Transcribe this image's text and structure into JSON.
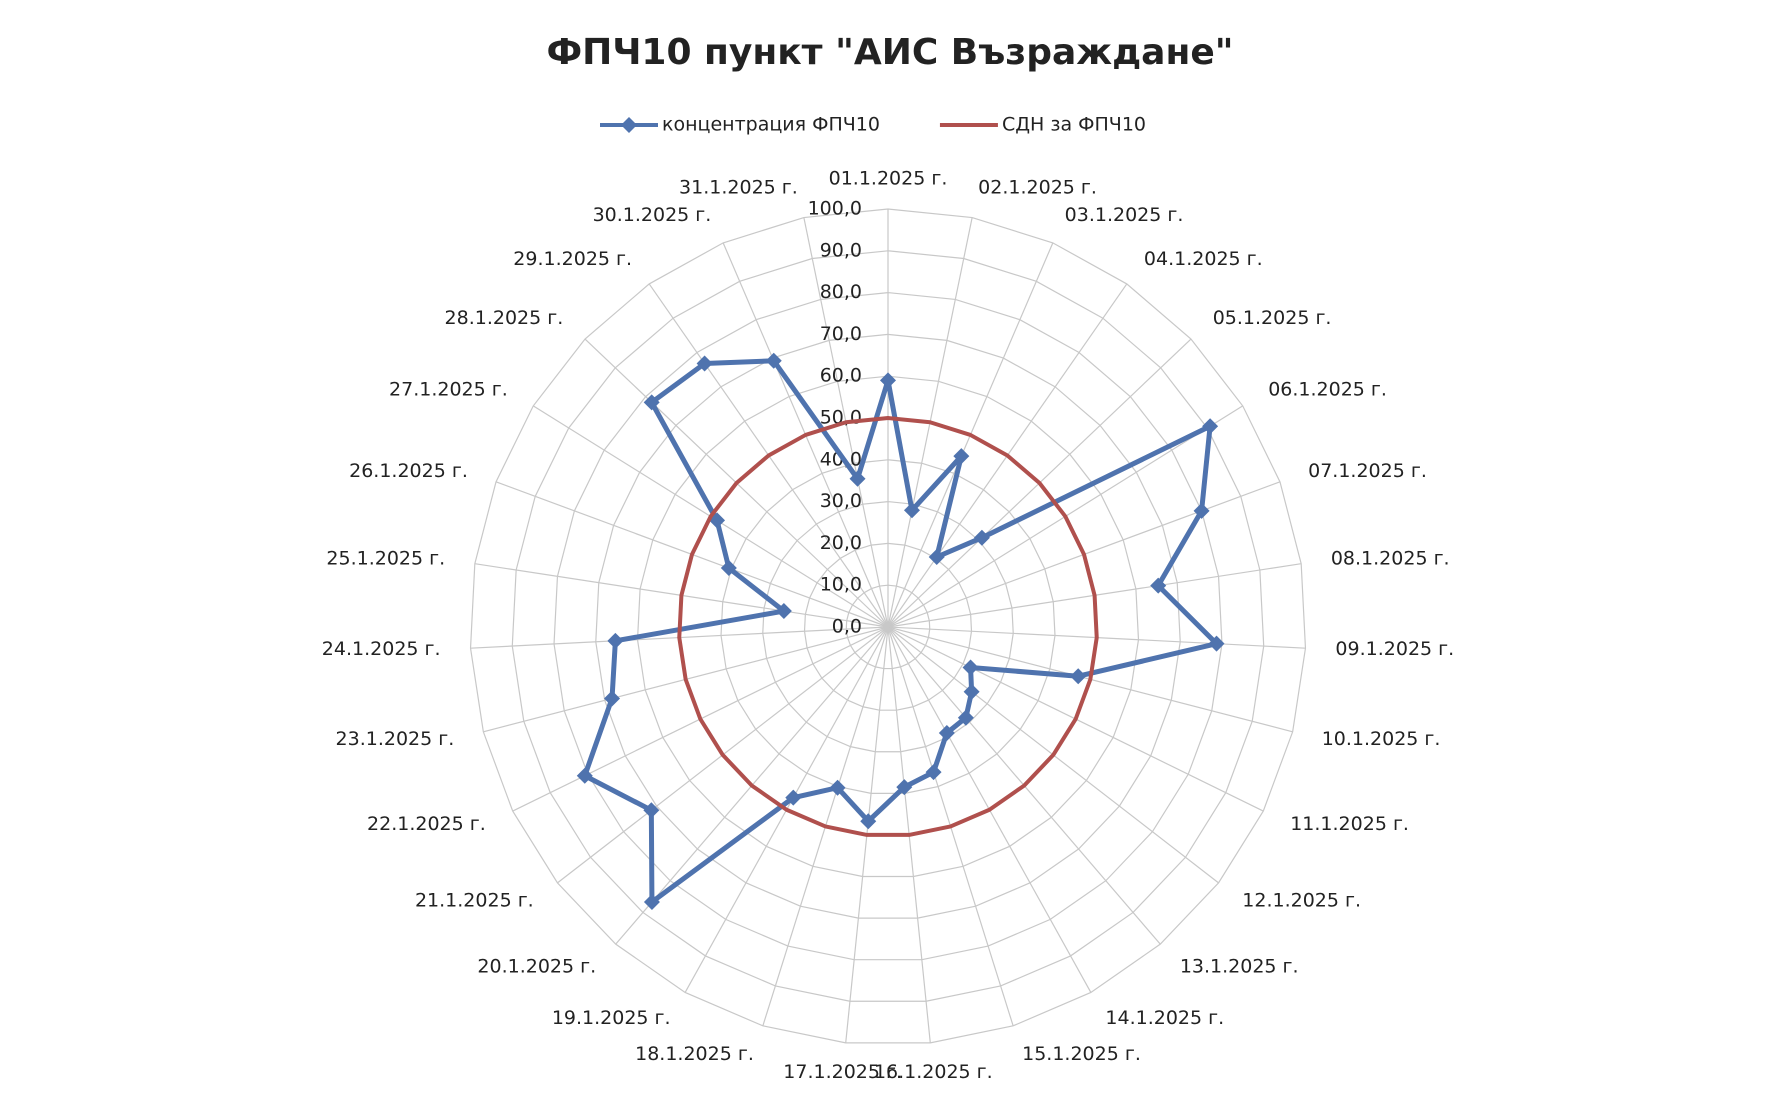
{
  "chart_data": {
    "type": "radar",
    "title": "ФПЧ10 пункт \"АИС Възраждане\"",
    "categories": [
      "01.1.2025 г.",
      "02.1.2025 г.",
      "03.1.2025 г.",
      "04.1.2025 г.",
      "05.1.2025 г.",
      "06.1.2025 г.",
      "07.1.2025 г.",
      "08.1.2025 г.",
      "09.1.2025 г.",
      "10.1.2025 г.",
      "11.1.2025 г.",
      "12.1.2025 г.",
      "13.1.2025 г.",
      "14.1.2025 г.",
      "15.1.2025 г.",
      "16.1.2025 г.",
      "17.1.2025 г.",
      "18.1.2025 г.",
      "19.1.2025 г.",
      "20.1.2025 г.",
      "21.1.2025 г.",
      "22.1.2025 г.",
      "23.1.2025 г.",
      "24.1.2025 г.",
      "25.1.2025 г.",
      "26.1.2025 г.",
      "27.1.2025 г.",
      "28.1.2025 г.",
      "29.1.2025 г.",
      "30.1.2025 г.",
      "31.1.2025 г."
    ],
    "series": [
      {
        "name": "концентрация  ФПЧ10",
        "color": "#4f73ae",
        "marker": "diamond",
        "values": [
          59,
          28.5,
          44.5,
          20.4,
          31,
          90.8,
          80,
          65.4,
          78.7,
          47,
          22,
          25.3,
          28.6,
          29,
          36.4,
          38.5,
          46.7,
          40.3,
          46.7,
          86.7,
          71.6,
          80.8,
          68.2,
          65.3,
          25.2,
          40.6,
          48.2,
          78,
          76.8,
          69.3,
          36.2
        ]
      },
      {
        "name": "СДН за ФПЧ10",
        "color": "#b0504d",
        "values": [
          50,
          50,
          50,
          50,
          50,
          50,
          50,
          50,
          50,
          50,
          50,
          50,
          50,
          50,
          50,
          50,
          50,
          50,
          50,
          50,
          50,
          50,
          50,
          50,
          50,
          50,
          50,
          50,
          50,
          50,
          50
        ]
      }
    ],
    "rlim": [
      0,
      100
    ],
    "rticks": [
      {
        "value": 0,
        "label": "0,0"
      },
      {
        "value": 10,
        "label": "10,0"
      },
      {
        "value": 20,
        "label": "20,0"
      },
      {
        "value": 30,
        "label": "30,0"
      },
      {
        "value": 40,
        "label": "40,0"
      },
      {
        "value": 50,
        "label": "50,0"
      },
      {
        "value": 60,
        "label": "60,0"
      },
      {
        "value": 70,
        "label": "70,0"
      },
      {
        "value": 80,
        "label": "80,0"
      },
      {
        "value": 90,
        "label": "90,0"
      },
      {
        "value": 100,
        "label": "100,0"
      }
    ],
    "grid": true,
    "legend": "top"
  }
}
